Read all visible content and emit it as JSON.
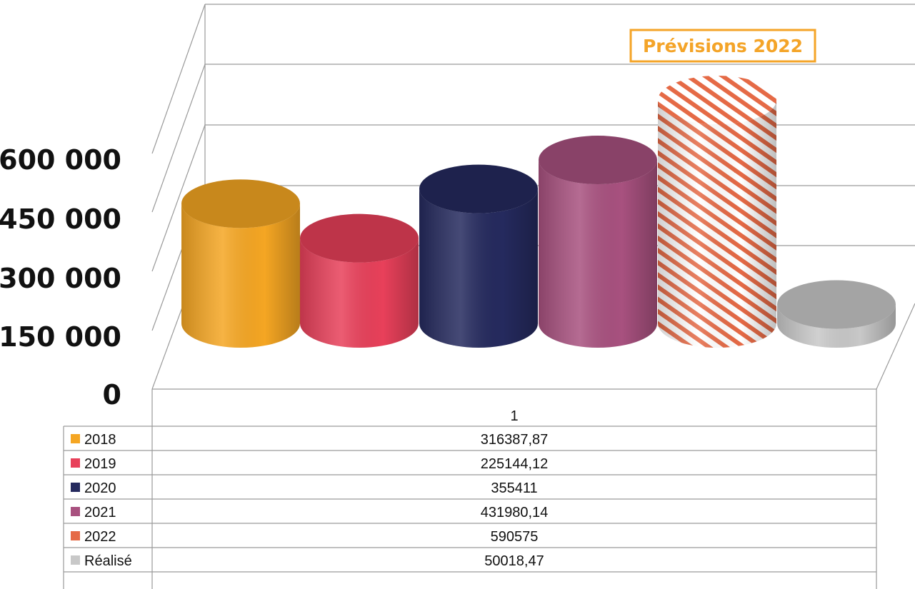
{
  "chart_data": {
    "type": "bar",
    "categories": [
      "1"
    ],
    "series": [
      {
        "name": "2018",
        "values": [
          316387.87
        ],
        "value_label": "316387,87",
        "color": "#F5A623",
        "fill": "solid"
      },
      {
        "name": "2019",
        "values": [
          225144.12
        ],
        "value_label": "225144,12",
        "color": "#E8405A",
        "fill": "solid"
      },
      {
        "name": "2020",
        "values": [
          355411
        ],
        "value_label": "355411",
        "color": "#252A5E",
        "fill": "solid"
      },
      {
        "name": "2021",
        "values": [
          431980.14
        ],
        "value_label": "431980,14",
        "color": "#A8517F",
        "fill": "solid"
      },
      {
        "name": "2022",
        "values": [
          590575
        ],
        "value_label": "590575",
        "color": "#E56A46",
        "fill": "hatched"
      },
      {
        "name": "Réalisé",
        "values": [
          50018.47
        ],
        "value_label": "50018,47",
        "color": "#C8C8C8",
        "fill": "solid"
      }
    ],
    "yticks": [
      "0",
      "150 000",
      "300 000",
      "450 000",
      "600 000"
    ],
    "ylim": [
      0,
      600000
    ],
    "annotation": "Prévisions 2022",
    "grid": true,
    "legend": "data-table",
    "style": "3d-cylinder"
  }
}
